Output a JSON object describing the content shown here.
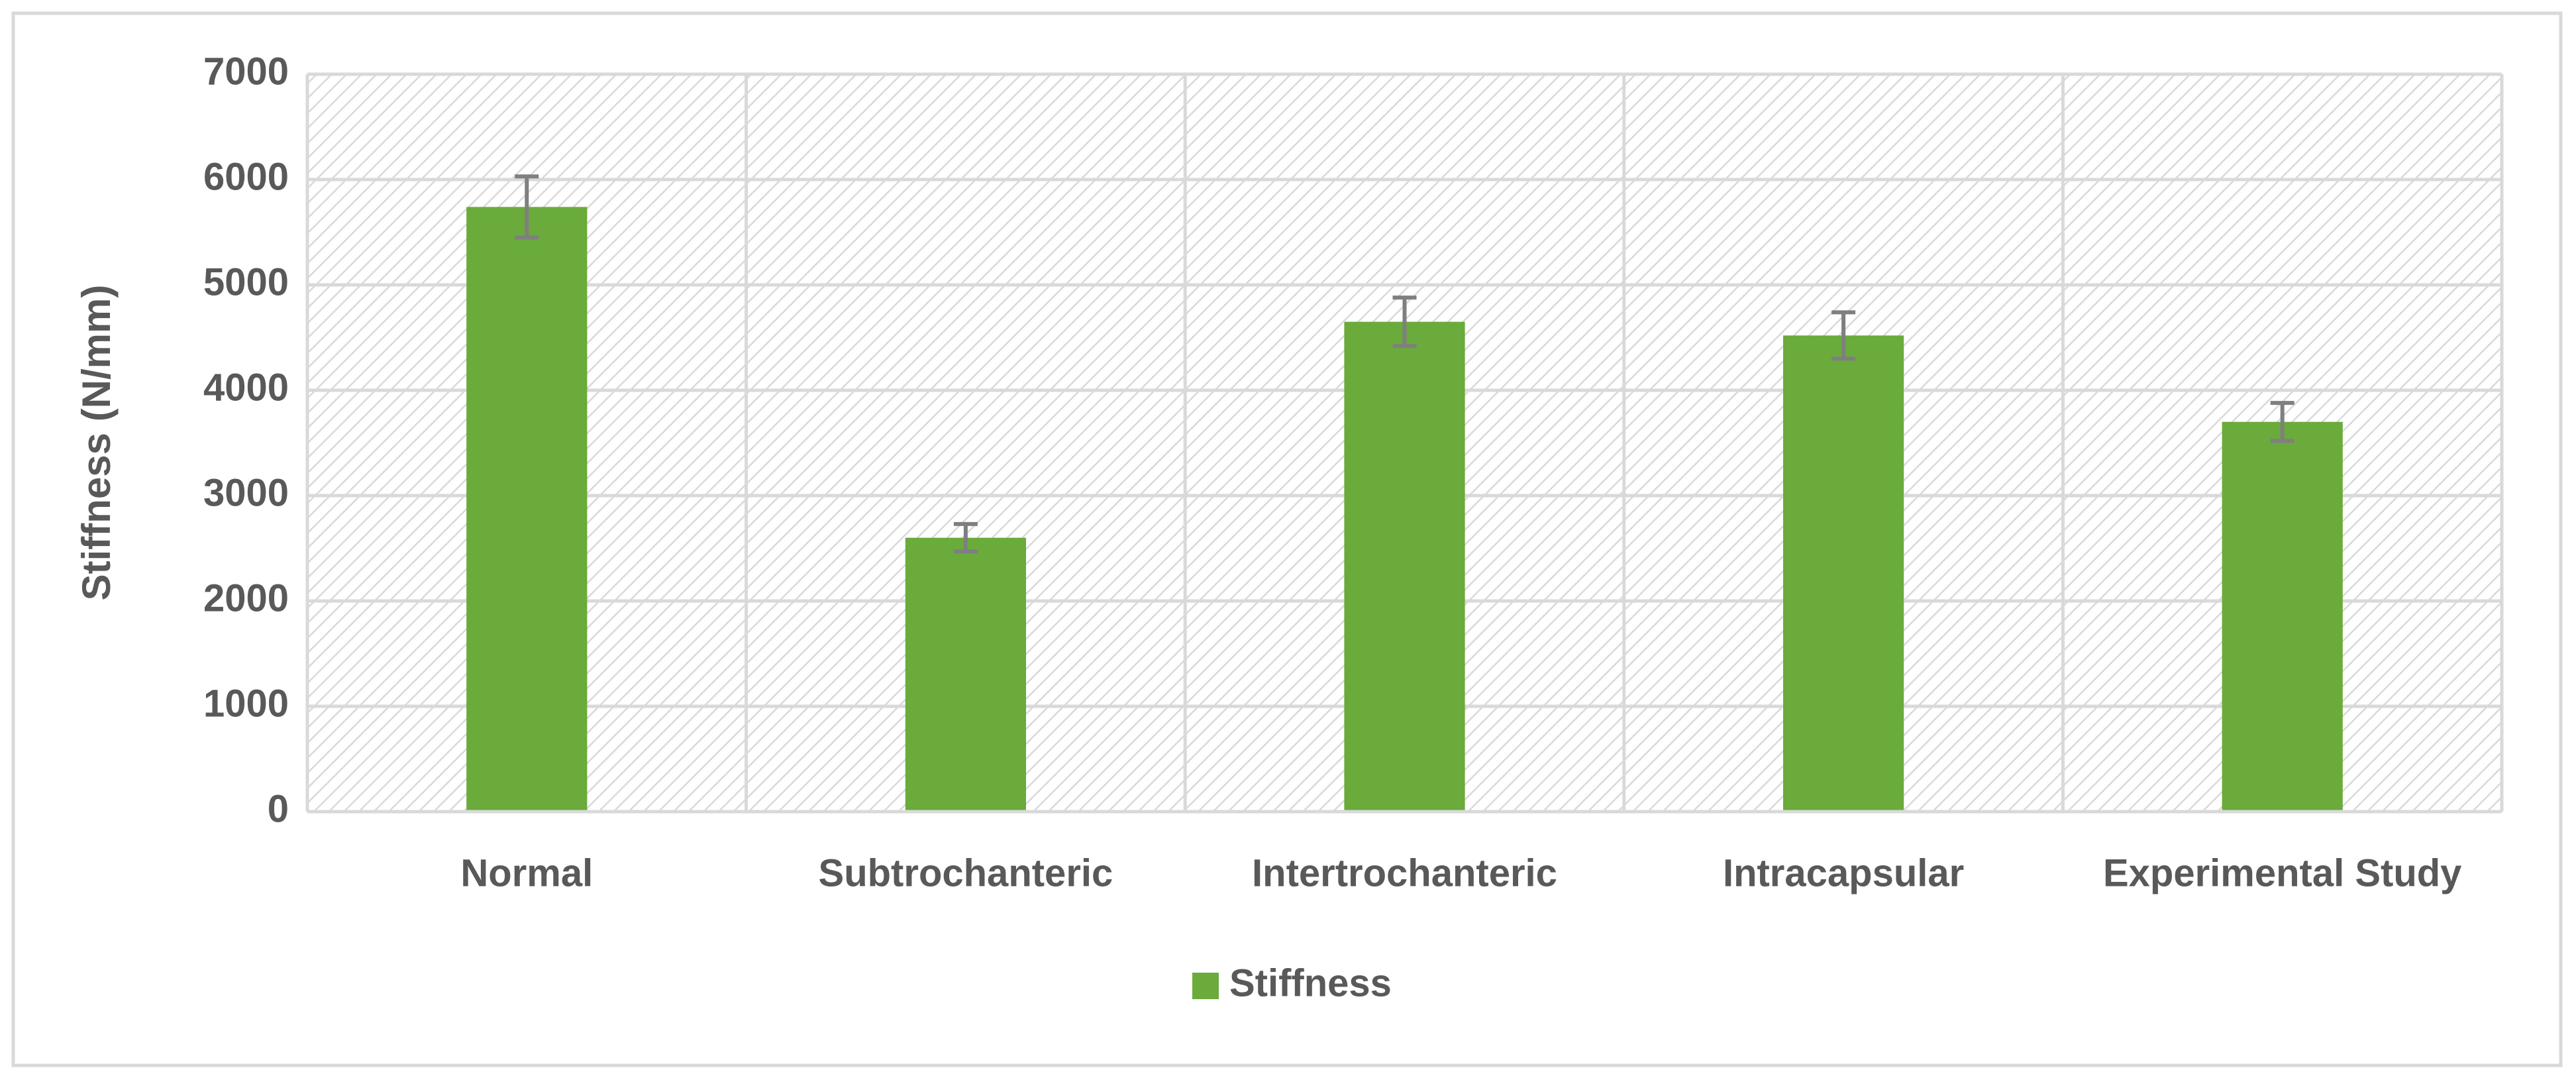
{
  "chart_data": {
    "type": "bar",
    "y_label": "Stiffness (N/mm)",
    "categories": [
      "Normal",
      "Subtrochanteric",
      "Intertrochanteric",
      "Intracapsular",
      "Experimental Study"
    ],
    "series": [
      {
        "name": "Stiffness",
        "color": "#6aab3c",
        "values": [
          5740,
          2600,
          4650,
          4520,
          3700
        ],
        "errors": [
          290,
          130,
          230,
          220,
          180
        ]
      }
    ],
    "ylim": [
      0,
      7000
    ],
    "yticks": [
      0,
      1000,
      2000,
      3000,
      4000,
      5000,
      6000,
      7000
    ],
    "grid": true,
    "legend": "bottom"
  }
}
